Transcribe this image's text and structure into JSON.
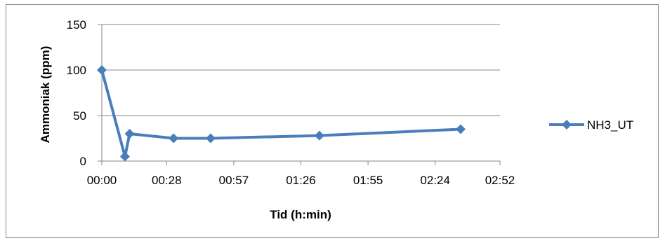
{
  "chart_data": {
    "type": "line",
    "xlabel": "Tid (h:min)",
    "ylabel": "Ammoniak (ppm)",
    "ylim": [
      0,
      150
    ],
    "yticks": [
      0,
      50,
      100,
      150
    ],
    "xlim_minutes": [
      0,
      172
    ],
    "xticks": [
      "00:00",
      "00:28",
      "00:57",
      "01:26",
      "01:55",
      "02:24",
      "02:52"
    ],
    "grid": true,
    "legend_position": "right",
    "series": [
      {
        "name": "NH3_UT",
        "color": "#4a7ebb",
        "marker": "diamond",
        "points": [
          {
            "x": "00:00",
            "y": 100
          },
          {
            "x": "00:10",
            "y": 5
          },
          {
            "x": "00:12",
            "y": 30
          },
          {
            "x": "00:31",
            "y": 25
          },
          {
            "x": "00:47",
            "y": 25
          },
          {
            "x": "01:34",
            "y": 28
          },
          {
            "x": "02:35",
            "y": 35
          }
        ]
      }
    ]
  }
}
